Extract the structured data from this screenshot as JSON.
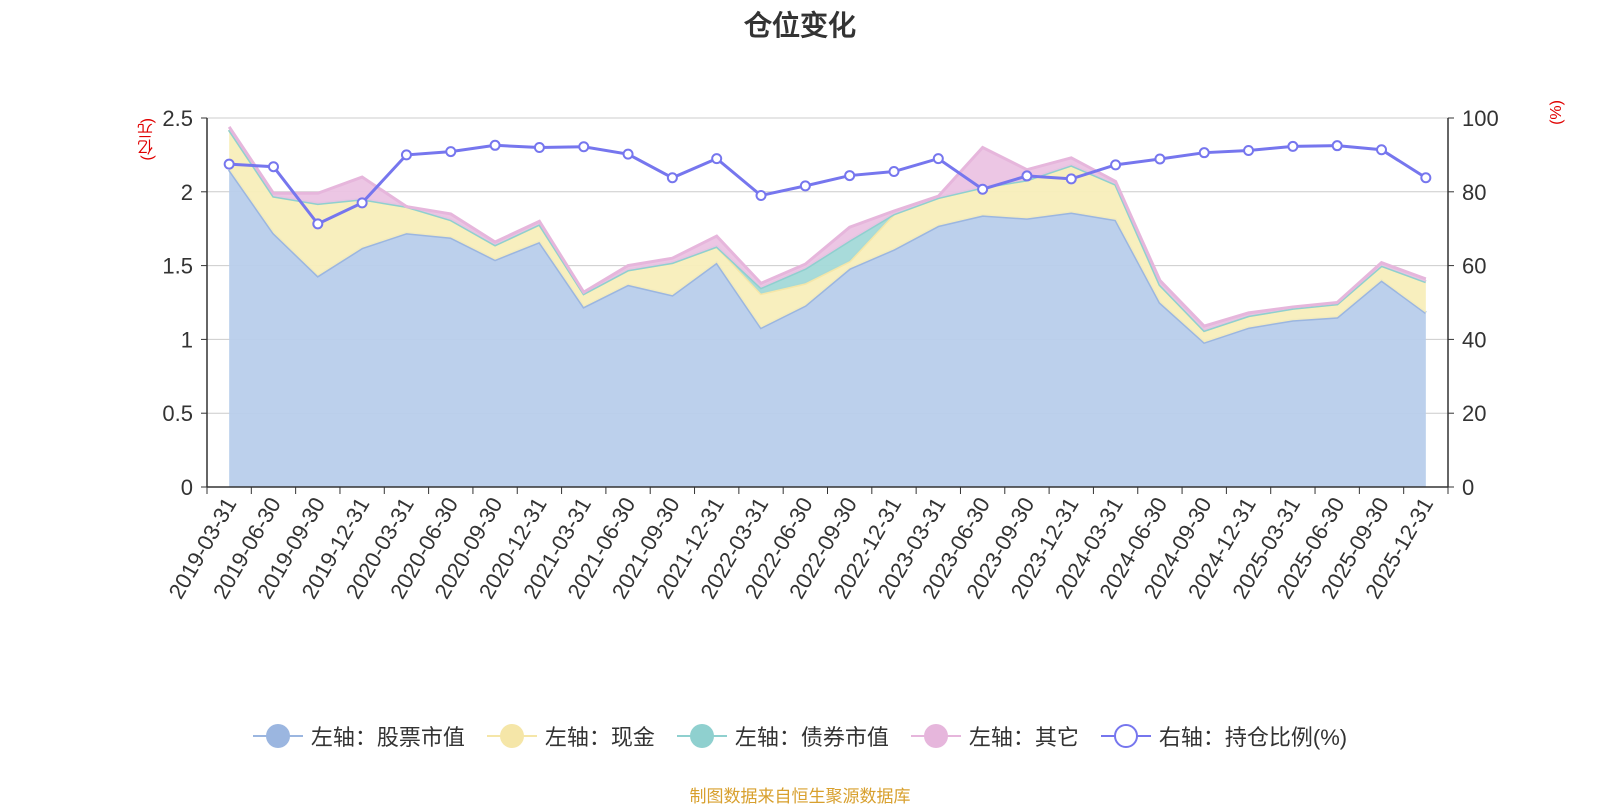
{
  "chart_data": {
    "type": "area",
    "title": "仓位变化",
    "left_unit": "(亿元)",
    "right_unit": "(%)",
    "categories": [
      "2019-03-31",
      "2019-06-30",
      "2019-09-30",
      "2019-12-31",
      "2020-03-31",
      "2020-06-30",
      "2020-09-30",
      "2020-12-31",
      "2021-03-31",
      "2021-06-30",
      "2021-09-30",
      "2021-12-31",
      "2022-03-31",
      "2022-06-30",
      "2022-09-30",
      "2022-12-31",
      "2023-03-31",
      "2023-06-30",
      "2023-09-30",
      "2023-12-31",
      "2024-03-31",
      "2024-06-30",
      "2024-09-30",
      "2024-12-31",
      "2025-03-31",
      "2025-06-30",
      "2025-09-30",
      "2025-12-31"
    ],
    "left_axis": {
      "min": 0,
      "max": 2.5,
      "ticks": [
        "0",
        "0.5",
        "1",
        "1.5",
        "2",
        "2.5"
      ]
    },
    "right_axis": {
      "min": 0,
      "max": 100,
      "ticks": [
        "0",
        "20",
        "40",
        "60",
        "80",
        "100"
      ]
    },
    "series": [
      {
        "name": "左轴：股票市值",
        "axis": "left",
        "stack": true,
        "color": "#9bb6e0",
        "fill": "#b8cdeb",
        "values": [
          2.15,
          1.72,
          1.43,
          1.62,
          1.72,
          1.69,
          1.54,
          1.66,
          1.22,
          1.37,
          1.3,
          1.52,
          1.08,
          1.23,
          1.48,
          1.61,
          1.77,
          1.84,
          1.82,
          1.86,
          1.81,
          1.25,
          0.98,
          1.08,
          1.13,
          1.15,
          1.4,
          1.18
        ]
      },
      {
        "name": "左轴：现金",
        "axis": "left",
        "stack": true,
        "color": "#f5e6a8",
        "fill": "#f8eebb",
        "values": [
          0.27,
          0.25,
          0.49,
          0.33,
          0.18,
          0.12,
          0.1,
          0.12,
          0.09,
          0.1,
          0.22,
          0.11,
          0.23,
          0.15,
          0.05,
          0.24,
          0.19,
          0.19,
          0.26,
          0.32,
          0.24,
          0.12,
          0.08,
          0.08,
          0.08,
          0.09,
          0.1,
          0.21
        ]
      },
      {
        "name": "左轴：债券市值",
        "axis": "left",
        "stack": true,
        "color": "#8fd0cf",
        "fill": "#a3d9d8",
        "values": [
          0.0,
          0.0,
          0.0,
          0.0,
          0.0,
          0.0,
          0.0,
          0.0,
          0.0,
          0.0,
          0.0,
          0.0,
          0.04,
          0.1,
          0.14,
          0.0,
          0.0,
          0.0,
          0.0,
          0.0,
          0.0,
          0.0,
          0.0,
          0.0,
          0.0,
          0.0,
          0.0,
          0.0
        ]
      },
      {
        "name": "左轴：其它",
        "axis": "left",
        "stack": true,
        "color": "#e6b6dc",
        "fill": "#ebc3e3",
        "values": [
          0.02,
          0.02,
          0.07,
          0.15,
          0.0,
          0.04,
          0.02,
          0.02,
          0.01,
          0.03,
          0.03,
          0.07,
          0.03,
          0.03,
          0.09,
          0.02,
          0.01,
          0.27,
          0.07,
          0.05,
          0.02,
          0.03,
          0.03,
          0.02,
          0.01,
          0.01,
          0.02,
          0.02
        ]
      },
      {
        "name": "右轴：持仓比例(%)",
        "axis": "right",
        "type": "line",
        "color": "#7676ee",
        "values": [
          87.5,
          86.8,
          71.3,
          77.0,
          90.0,
          90.9,
          92.6,
          92.0,
          92.2,
          90.2,
          83.8,
          89.0,
          79.0,
          81.6,
          84.4,
          85.5,
          89.0,
          80.7,
          84.3,
          83.5,
          87.3,
          88.9,
          90.6,
          91.2,
          92.3,
          92.5,
          91.4,
          83.8
        ]
      }
    ],
    "legend_position": "bottom",
    "grid": true
  },
  "source_text": "制图数据来自恒生聚源数据库"
}
